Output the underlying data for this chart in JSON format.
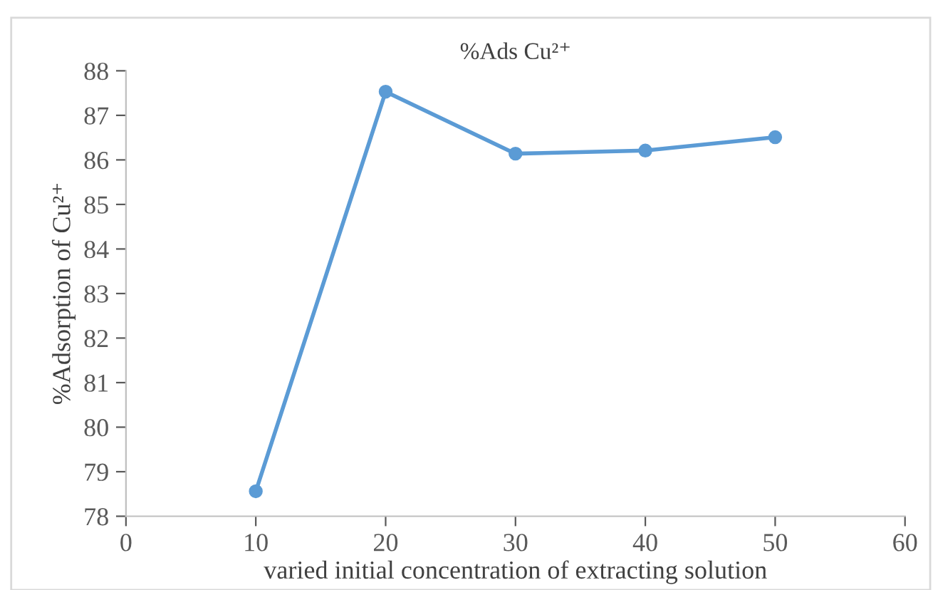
{
  "chart_data": {
    "type": "line",
    "title": "%Ads Cu²⁺",
    "xlabel": "varied initial concentration of extracting solution",
    "ylabel": "%Adsorption of Cu²⁺",
    "x": [
      10,
      20,
      30,
      40,
      50
    ],
    "series": [
      {
        "color": "#5b9bd5",
        "values": [
          78.56,
          87.53,
          86.14,
          86.21,
          86.51
        ]
      }
    ],
    "xlim": [
      0,
      60
    ],
    "xticks": [
      0,
      10,
      20,
      30,
      40,
      50,
      60
    ],
    "ylim": [
      78,
      88
    ],
    "yticks": [
      78,
      79,
      80,
      81,
      82,
      83,
      84,
      85,
      86,
      87,
      88
    ],
    "grid": false,
    "marker": "circle",
    "line_style": "solid"
  }
}
